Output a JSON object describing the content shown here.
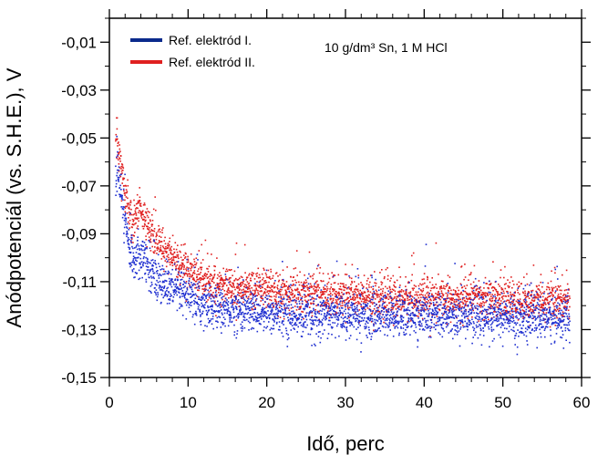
{
  "chart_data": {
    "type": "scatter",
    "title": "",
    "xlabel": "Idő, perc",
    "ylabel": "Anódpotenciál (vs. S.H.E.), V",
    "xlim": [
      0,
      60
    ],
    "ylim": [
      -0.15,
      0.0
    ],
    "x_ticks": [
      0,
      10,
      20,
      30,
      40,
      50,
      60
    ],
    "x_tick_labels": [
      "0",
      "10",
      "20",
      "30",
      "40",
      "50",
      "60"
    ],
    "y_ticks": [
      -0.01,
      -0.03,
      -0.05,
      -0.07,
      -0.09,
      -0.11,
      -0.13,
      -0.15
    ],
    "y_tick_labels": [
      "-0,01",
      "-0,03",
      "-0,05",
      "-0,07",
      "-0,09",
      "-0,11",
      "-0,13",
      "-0,15"
    ],
    "grid": false,
    "legend_position": "top-left",
    "annotation": "10 g/dm³ Sn, 1 M HCl",
    "series": [
      {
        "name": "Ref. elektród I.",
        "color": "#1f2fd0",
        "legend_color": "#0a2a8c",
        "x": [
          0.8,
          1.0,
          1.2,
          1.5,
          2.0,
          2.5,
          3.0,
          3.5,
          4.0,
          5.0,
          6.0,
          7.0,
          8.0,
          9.0,
          10.0,
          12.0,
          14.0,
          16.0,
          18.0,
          20.0,
          25.0,
          30.0,
          35.0,
          40.0,
          45.0,
          50.0,
          55.0,
          58.5
        ],
        "values": [
          -0.062,
          -0.064,
          -0.068,
          -0.074,
          -0.085,
          -0.095,
          -0.1,
          -0.099,
          -0.098,
          -0.104,
          -0.108,
          -0.111,
          -0.113,
          -0.115,
          -0.117,
          -0.12,
          -0.121,
          -0.122,
          -0.122,
          -0.123,
          -0.124,
          -0.124,
          -0.124,
          -0.124,
          -0.124,
          -0.125,
          -0.125,
          -0.125
        ]
      },
      {
        "name": "Ref. elektród II.",
        "color": "#e02020",
        "legend_color": "#e02020",
        "x": [
          0.8,
          1.0,
          1.2,
          1.5,
          2.0,
          2.5,
          3.0,
          3.5,
          4.0,
          5.0,
          6.0,
          7.0,
          8.0,
          9.0,
          10.0,
          12.0,
          14.0,
          16.0,
          18.0,
          20.0,
          25.0,
          30.0,
          35.0,
          40.0,
          45.0,
          50.0,
          55.0,
          58.5
        ],
        "values": [
          -0.05,
          -0.052,
          -0.056,
          -0.062,
          -0.073,
          -0.082,
          -0.086,
          -0.08,
          -0.079,
          -0.087,
          -0.093,
          -0.097,
          -0.1,
          -0.103,
          -0.105,
          -0.109,
          -0.111,
          -0.112,
          -0.113,
          -0.114,
          -0.115,
          -0.116,
          -0.117,
          -0.117,
          -0.117,
          -0.118,
          -0.118,
          -0.118
        ]
      }
    ],
    "spread": [
      0.0045,
      0.004
    ]
  }
}
